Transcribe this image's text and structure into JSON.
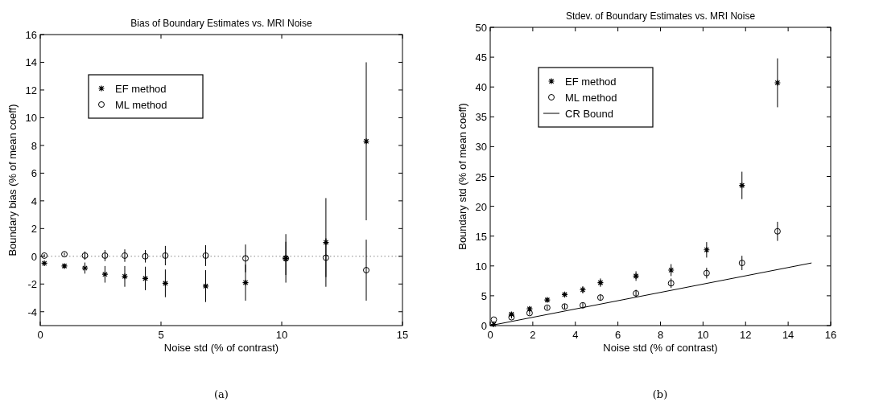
{
  "chart_data": [
    {
      "type": "scatter",
      "title": "Bias of Boundary Estimates vs. MRI Noise",
      "xlabel": "Noise std (% of contrast)",
      "ylabel": "Boundary bias (% of mean coeff)",
      "xlim": [
        0,
        15
      ],
      "xticks": [
        0,
        5,
        10,
        15
      ],
      "ylim": [
        -5,
        16
      ],
      "yticks": [
        -4,
        -2,
        0,
        2,
        4,
        6,
        8,
        10,
        12,
        14,
        16
      ],
      "legend": "top left",
      "annotations": [
        "(a)"
      ],
      "ref_lines": [
        {
          "axis": "y",
          "value": 0,
          "line_style": "dotted",
          "color": "#888888"
        }
      ],
      "series": [
        {
          "name": "EF method",
          "color": "#000000",
          "marker": "cross",
          "x": [
            0.17,
            1.0,
            1.85,
            2.68,
            3.5,
            4.35,
            5.18,
            6.85,
            8.5,
            10.17,
            11.83,
            13.5
          ],
          "values": [
            -0.5,
            -0.7,
            -0.85,
            -1.3,
            -1.45,
            -1.6,
            -1.95,
            -2.15,
            -1.9,
            -0.15,
            1.0,
            8.3
          ],
          "errors": [
            0.1,
            0.15,
            0.4,
            0.6,
            0.75,
            0.85,
            1.0,
            1.15,
            1.3,
            1.75,
            [
              -2.2,
              4.2
            ],
            [
              2.6,
              14
            ]
          ]
        },
        {
          "name": "ML method",
          "color": "#000000",
          "marker": "circle",
          "x": [
            0.17,
            1.0,
            1.85,
            2.68,
            3.5,
            4.35,
            5.18,
            6.85,
            8.5,
            10.17,
            11.83,
            13.5
          ],
          "values": [
            0.05,
            0.15,
            0.05,
            0.05,
            0.05,
            0.0,
            0.05,
            0.05,
            -0.15,
            -0.15,
            -0.1,
            -1.0
          ],
          "errors": [
            0.1,
            0.1,
            0.3,
            0.4,
            0.45,
            0.45,
            0.7,
            0.75,
            1.0,
            1.2,
            1.4,
            [
              -3.2,
              1.2
            ]
          ]
        }
      ]
    },
    {
      "type": "scatter",
      "title": "Stdev. of Boundary Estimates vs. MRI Noise",
      "xlabel": "Noise std (% of contrast)",
      "ylabel": "Boundary std (% of mean coeff)",
      "xlim": [
        0,
        16
      ],
      "xticks": [
        0,
        2,
        4,
        6,
        8,
        10,
        12,
        14,
        16
      ],
      "ylim": [
        0,
        50
      ],
      "yticks": [
        0,
        5,
        10,
        15,
        20,
        25,
        30,
        35,
        40,
        45,
        50
      ],
      "legend": "top left",
      "annotations": [
        "(b)"
      ],
      "series": [
        {
          "name": "EF method",
          "color": "#000000",
          "marker": "cross",
          "x": [
            0.17,
            1.0,
            1.85,
            2.68,
            3.5,
            4.35,
            5.18,
            6.85,
            8.5,
            10.17,
            11.83,
            13.5
          ],
          "values": [
            0.2,
            1.9,
            2.8,
            4.3,
            5.2,
            6.0,
            7.2,
            8.3,
            9.3,
            12.7,
            23.5,
            40.7
          ],
          "errors": [
            null,
            0.3,
            0.4,
            0.4,
            0.5,
            0.6,
            0.7,
            0.8,
            1.0,
            1.3,
            2.3,
            4.1
          ]
        },
        {
          "name": "ML method",
          "color": "#000000",
          "marker": "circle",
          "x": [
            0.17,
            1.0,
            1.85,
            2.68,
            3.5,
            4.35,
            5.18,
            6.85,
            8.5,
            10.17,
            11.83,
            13.5
          ],
          "values": [
            1.0,
            1.4,
            2.1,
            3.0,
            3.2,
            3.4,
            4.7,
            5.4,
            7.1,
            8.8,
            10.5,
            15.8
          ],
          "errors": [
            null,
            0.2,
            0.3,
            0.3,
            0.4,
            0.4,
            0.5,
            0.6,
            0.8,
            0.9,
            1.2,
            1.6
          ]
        },
        {
          "name": "CR Bound",
          "type": "line",
          "color": "#000000",
          "marker": "none",
          "line_style": "solid",
          "x": [
            0,
            15.1
          ],
          "values": [
            0,
            10.5
          ]
        }
      ]
    }
  ]
}
